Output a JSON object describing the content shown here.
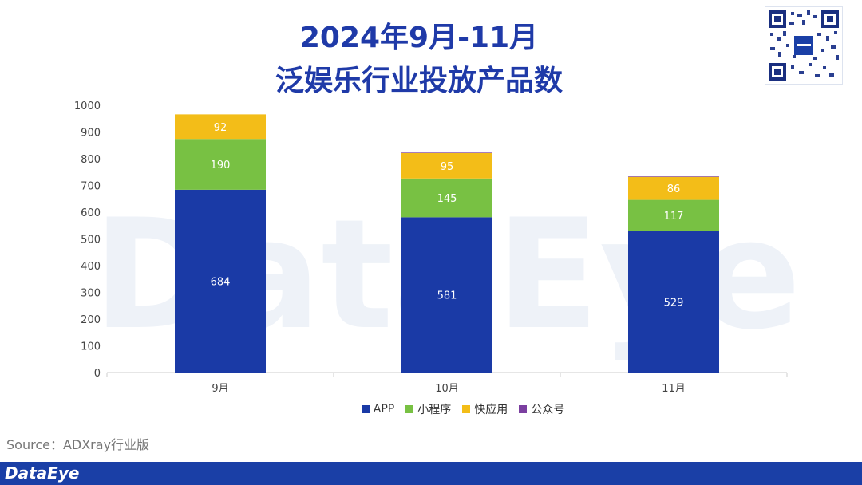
{
  "header": {
    "title_line1": "2024年9月-11月",
    "title_line2": "泛娱乐行业投放产品数"
  },
  "chart_data": {
    "type": "bar",
    "stacked": true,
    "categories": [
      "9月",
      "10月",
      "11月"
    ],
    "series": [
      {
        "name": "APP",
        "color": "#1a3aa6",
        "values": [
          684,
          581,
          529
        ]
      },
      {
        "name": "小程序",
        "color": "#78c143",
        "values": [
          190,
          145,
          117
        ]
      },
      {
        "name": "快应用",
        "color": "#f3bd18",
        "values": [
          92,
          95,
          86
        ]
      },
      {
        "name": "公众号",
        "color": "#7b3fa0",
        "values": [
          0,
          2,
          2
        ]
      }
    ],
    "data_labels": [
      {
        "series": "APP",
        "labels": [
          "684",
          "581",
          "529"
        ]
      },
      {
        "series": "小程序",
        "labels": [
          "190",
          "145",
          "117"
        ]
      },
      {
        "series": "快应用",
        "labels": [
          "92",
          "95",
          "86"
        ]
      }
    ],
    "yticks": [
      "0",
      "100",
      "200",
      "300",
      "400",
      "500",
      "600",
      "700",
      "800",
      "900",
      "1000"
    ],
    "ylim": [
      0,
      1000
    ],
    "grid": false,
    "legend_position": "bottom"
  },
  "watermark": "DataEye",
  "source": "Source：ADXray行业版",
  "footer": {
    "brand": "DataEye"
  },
  "icons": {
    "qr": "qr-code-icon"
  }
}
